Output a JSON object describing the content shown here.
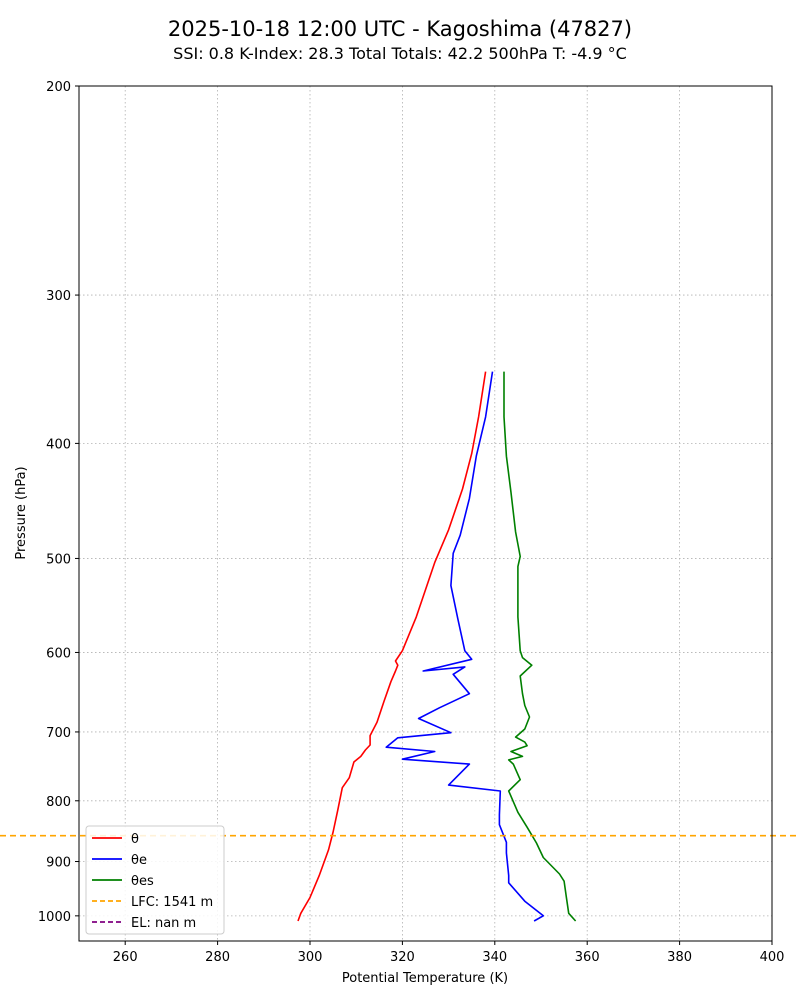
{
  "chart_data": {
    "type": "line",
    "title": "2025-10-18 12:00 UTC - Kagoshima (47827)",
    "subtitle": "SSI: 0.8   K-Index: 28.3   Total Totals: 42.2   500hPa T: -4.9 °C",
    "xlabel": "Potential Temperature (K)",
    "ylabel": "Pressure (hPa)",
    "xlim": [
      250,
      400
    ],
    "ylim": [
      1050,
      200
    ],
    "yscale": "log",
    "x_ticks": [
      260,
      280,
      300,
      320,
      340,
      360,
      380,
      400
    ],
    "y_ticks": [
      200,
      300,
      400,
      500,
      600,
      700,
      800,
      900,
      1000
    ],
    "grid": true,
    "legend_position": "lower-left",
    "series": [
      {
        "name": "θ",
        "color": "#ff0000",
        "points": [
          [
            297.4,
            1010
          ],
          [
            298,
            995
          ],
          [
            300,
            965
          ],
          [
            302,
            925
          ],
          [
            304,
            880
          ],
          [
            305,
            850
          ],
          [
            306,
            815
          ],
          [
            307,
            780
          ],
          [
            308.5,
            765
          ],
          [
            309.5,
            742
          ],
          [
            311,
            734
          ],
          [
            312,
            725
          ],
          [
            313,
            718
          ],
          [
            313,
            705
          ],
          [
            314.5,
            687
          ],
          [
            316,
            660
          ],
          [
            317.5,
            635
          ],
          [
            318.5,
            622
          ],
          [
            319,
            615
          ],
          [
            318.5,
            610
          ],
          [
            320,
            598
          ],
          [
            323,
            560
          ],
          [
            327,
            504
          ],
          [
            330,
            473
          ],
          [
            333,
            437
          ],
          [
            335,
            408
          ],
          [
            336.5,
            380
          ],
          [
            338,
            348
          ]
        ]
      },
      {
        "name": "θe",
        "color": "#0000ff",
        "points": [
          [
            348.5,
            1010
          ],
          [
            350.5,
            1000
          ],
          [
            346.5,
            972
          ],
          [
            343,
            938
          ],
          [
            343,
            925
          ],
          [
            342.5,
            885
          ],
          [
            342.5,
            867
          ],
          [
            341,
            838
          ],
          [
            341,
            822
          ],
          [
            341.2,
            785
          ],
          [
            330,
            776
          ],
          [
            334.5,
            745
          ],
          [
            320,
            738
          ],
          [
            327,
            727
          ],
          [
            316.5,
            721
          ],
          [
            319,
            708
          ],
          [
            330.5,
            701
          ],
          [
            323.5,
            682
          ],
          [
            328,
            668
          ],
          [
            334.5,
            650
          ],
          [
            331,
            626
          ],
          [
            333.5,
            617
          ],
          [
            324.5,
            622
          ],
          [
            335,
            608
          ],
          [
            333.5,
            598
          ],
          [
            332,
            562
          ],
          [
            330.5,
            527
          ],
          [
            331,
            495
          ],
          [
            332.5,
            478
          ],
          [
            334.5,
            445
          ],
          [
            336,
            410
          ],
          [
            338,
            380
          ],
          [
            339.5,
            348
          ]
        ]
      },
      {
        "name": "θes",
        "color": "#008000",
        "points": [
          [
            357.5,
            1010
          ],
          [
            356,
            995
          ],
          [
            355.5,
            965
          ],
          [
            355,
            935
          ],
          [
            354,
            922
          ],
          [
            350.5,
            893
          ],
          [
            349,
            868
          ],
          [
            347,
            842
          ],
          [
            345,
            818
          ],
          [
            343,
            785
          ],
          [
            345.5,
            768
          ],
          [
            344,
            745
          ],
          [
            343,
            739
          ],
          [
            346,
            734
          ],
          [
            343.5,
            727
          ],
          [
            347,
            719
          ],
          [
            346.5,
            714
          ],
          [
            344.5,
            707
          ],
          [
            346.5,
            696
          ],
          [
            347.5,
            680
          ],
          [
            346.5,
            665
          ],
          [
            346,
            650
          ],
          [
            345.5,
            628
          ],
          [
            348,
            615
          ],
          [
            346,
            606
          ],
          [
            345.5,
            598
          ],
          [
            345,
            560
          ],
          [
            345,
            508
          ],
          [
            345.5,
            498
          ],
          [
            344.5,
            475
          ],
          [
            343.5,
            440
          ],
          [
            342.5,
            410
          ],
          [
            342,
            380
          ],
          [
            342,
            348
          ]
        ]
      }
    ],
    "reference_lines": [
      {
        "name": "LFC: 1541 m",
        "color": "#ffa500",
        "pressure": 856
      },
      {
        "name": "EL: nan m",
        "color": "#800080",
        "pressure": null
      }
    ]
  }
}
